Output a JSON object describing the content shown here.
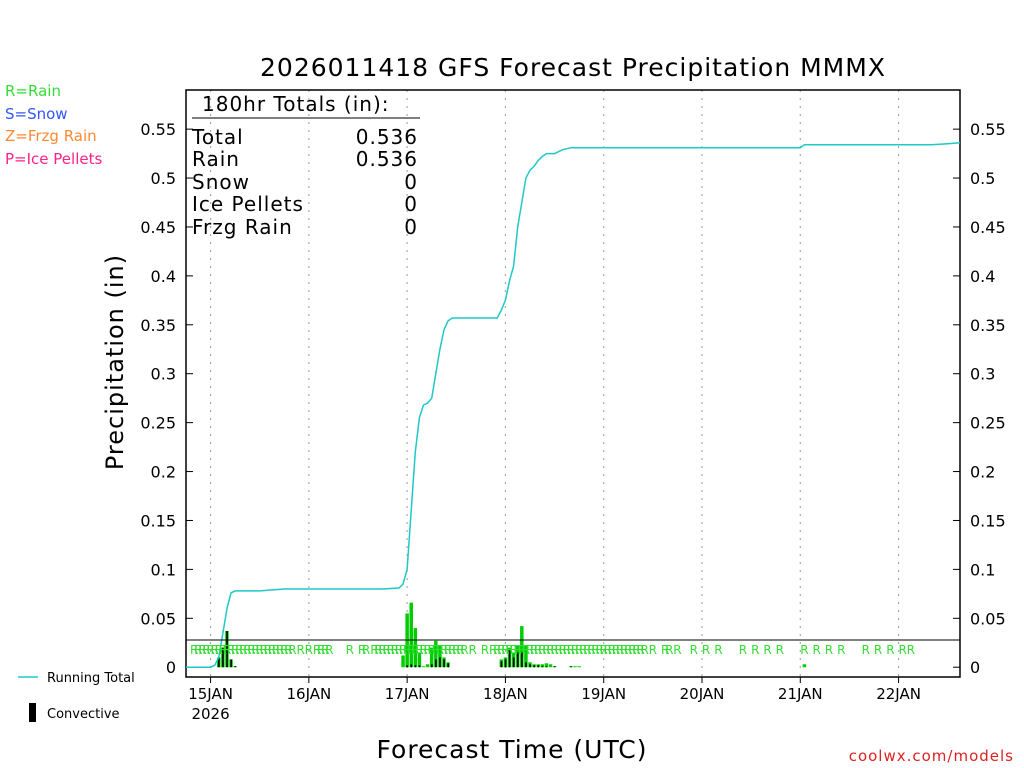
{
  "chart_data": {
    "type": "bar+line",
    "title": "2026011418 GFS Forecast Precipitation MMMX",
    "xlabel": "Forecast Time (UTC)",
    "ylabel": "Precipitation (in)",
    "ylim": [
      -0.01,
      0.59
    ],
    "y_ticks": [
      0,
      0.05,
      0.1,
      0.15,
      0.2,
      0.25,
      0.3,
      0.35,
      0.4,
      0.45,
      0.5,
      0.55
    ],
    "y_tick_labels": [
      "0",
      "0.05",
      "0.1",
      "0.15",
      "0.2",
      "0.25",
      "0.3",
      "0.35",
      "0.4",
      "0.45",
      "0.5",
      "0.55"
    ],
    "x_range_hours": [
      -6,
      183
    ],
    "x_ticks": [
      {
        "hour": 0,
        "label": "15JAN",
        "sublabel": "2026"
      },
      {
        "hour": 24,
        "label": "16JAN"
      },
      {
        "hour": 48,
        "label": "17JAN"
      },
      {
        "hour": 72,
        "label": "18JAN"
      },
      {
        "hour": 96,
        "label": "19JAN"
      },
      {
        "hour": 120,
        "label": "20JAN"
      },
      {
        "hour": 144,
        "label": "21JAN"
      },
      {
        "hour": 168,
        "label": "22JAN"
      }
    ],
    "legend_types": [
      {
        "text": "R=Rain",
        "color": "#33dd33"
      },
      {
        "text": "S=Snow",
        "color": "#3355ff"
      },
      {
        "text": "Z=Frzg Rain",
        "color": "#ff8833"
      },
      {
        "text": "P=Ice Pellets",
        "color": "#ff2288"
      }
    ],
    "legend_series": [
      {
        "text": "Running Total",
        "color": "#20c8c8"
      },
      {
        "text": "Convective",
        "color": "#000000"
      }
    ],
    "totals_box": {
      "heading": "180hr Totals (in):",
      "rows": [
        {
          "label": "Total",
          "value": "0.536"
        },
        {
          "label": "Rain",
          "value": "0.536"
        },
        {
          "label": "Snow",
          "value": "0"
        },
        {
          "label": "Ice Pellets",
          "value": "0"
        },
        {
          "label": "Frzg Rain",
          "value": "0"
        }
      ]
    },
    "running_total": [
      [
        -6,
        0
      ],
      [
        0,
        0
      ],
      [
        1,
        0.002
      ],
      [
        2,
        0.01
      ],
      [
        3,
        0.035
      ],
      [
        4,
        0.06
      ],
      [
        5,
        0.076
      ],
      [
        6,
        0.078
      ],
      [
        8,
        0.078
      ],
      [
        12,
        0.078
      ],
      [
        18,
        0.08
      ],
      [
        24,
        0.08
      ],
      [
        30,
        0.08
      ],
      [
        36,
        0.08
      ],
      [
        42,
        0.08
      ],
      [
        46,
        0.081
      ],
      [
        47,
        0.085
      ],
      [
        48,
        0.1
      ],
      [
        49,
        0.16
      ],
      [
        50,
        0.22
      ],
      [
        51,
        0.255
      ],
      [
        52,
        0.268
      ],
      [
        53,
        0.27
      ],
      [
        54,
        0.275
      ],
      [
        55,
        0.3
      ],
      [
        56,
        0.325
      ],
      [
        57,
        0.345
      ],
      [
        58,
        0.354
      ],
      [
        59,
        0.357
      ],
      [
        60,
        0.357
      ],
      [
        66,
        0.357
      ],
      [
        70,
        0.357
      ],
      [
        71,
        0.365
      ],
      [
        72,
        0.375
      ],
      [
        73,
        0.395
      ],
      [
        74,
        0.41
      ],
      [
        75,
        0.45
      ],
      [
        76,
        0.475
      ],
      [
        77,
        0.5
      ],
      [
        78,
        0.508
      ],
      [
        79,
        0.512
      ],
      [
        80,
        0.518
      ],
      [
        81,
        0.522
      ],
      [
        82,
        0.525
      ],
      [
        84,
        0.525
      ],
      [
        85,
        0.527
      ],
      [
        86,
        0.529
      ],
      [
        88,
        0.531
      ],
      [
        96,
        0.531
      ],
      [
        120,
        0.531
      ],
      [
        144,
        0.531
      ],
      [
        145,
        0.534
      ],
      [
        150,
        0.534
      ],
      [
        160,
        0.534
      ],
      [
        170,
        0.534
      ],
      [
        176,
        0.534
      ],
      [
        180,
        0.535
      ],
      [
        183,
        0.536
      ]
    ],
    "bars": [
      {
        "hour": 2,
        "total": 0.01,
        "convective": 0.01
      },
      {
        "hour": 3,
        "total": 0.02,
        "convective": 0.02
      },
      {
        "hour": 4,
        "total": 0.037,
        "convective": 0.037
      },
      {
        "hour": 5,
        "total": 0.008,
        "convective": 0.008
      },
      {
        "hour": 6,
        "total": 0.001,
        "convective": 0.001
      },
      {
        "hour": 47,
        "total": 0.012,
        "convective": 0
      },
      {
        "hour": 48,
        "total": 0.055,
        "convective": 0.002
      },
      {
        "hour": 49,
        "total": 0.066,
        "convective": 0.003
      },
      {
        "hour": 50,
        "total": 0.04,
        "convective": 0.002
      },
      {
        "hour": 51,
        "total": 0.015,
        "convective": 0.002
      },
      {
        "hour": 52,
        "total": 0.001,
        "convective": 0
      },
      {
        "hour": 53,
        "total": 0.003,
        "convective": 0
      },
      {
        "hour": 54,
        "total": 0.02,
        "convective": 0.003
      },
      {
        "hour": 55,
        "total": 0.027,
        "convective": 0.008
      },
      {
        "hour": 56,
        "total": 0.022,
        "convective": 0.01
      },
      {
        "hour": 57,
        "total": 0.01,
        "convective": 0.008
      },
      {
        "hour": 58,
        "total": 0.005,
        "convective": 0.004
      },
      {
        "hour": 71,
        "total": 0.008,
        "convective": 0.006
      },
      {
        "hour": 72,
        "total": 0.01,
        "convective": 0.008
      },
      {
        "hour": 73,
        "total": 0.02,
        "convective": 0.018
      },
      {
        "hour": 74,
        "total": 0.015,
        "convective": 0.01
      },
      {
        "hour": 75,
        "total": 0.022,
        "convective": 0.015
      },
      {
        "hour": 76,
        "total": 0.042,
        "convective": 0.015
      },
      {
        "hour": 77,
        "total": 0.022,
        "convective": 0.005
      },
      {
        "hour": 78,
        "total": 0.005,
        "convective": 0.003
      },
      {
        "hour": 79,
        "total": 0.003,
        "convective": 0.002
      },
      {
        "hour": 80,
        "total": 0.003,
        "convective": 0.002
      },
      {
        "hour": 81,
        "total": 0.003,
        "convective": 0.001
      },
      {
        "hour": 82,
        "total": 0.004,
        "convective": 0.001
      },
      {
        "hour": 83,
        "total": 0.003,
        "convective": 0
      },
      {
        "hour": 84,
        "total": 0.001,
        "convective": 0.001
      },
      {
        "hour": 88,
        "total": 0.001,
        "convective": 0.001
      },
      {
        "hour": 89,
        "total": 0.001,
        "convective": 0
      },
      {
        "hour": 90,
        "total": 0.001,
        "convective": 0
      },
      {
        "hour": 145,
        "total": 0.003,
        "convective": 0
      }
    ],
    "precip_type_markers": {
      "letter": "R",
      "hours": [
        -4,
        -3,
        -2,
        -1,
        0,
        1,
        2,
        3,
        4,
        5,
        6,
        7,
        8,
        9,
        10,
        11,
        12,
        13,
        14,
        15,
        16,
        17,
        18,
        19,
        20,
        22,
        24,
        26,
        27,
        28,
        29,
        34,
        37,
        38,
        40,
        41,
        42,
        43,
        44,
        45,
        46,
        47,
        48,
        49,
        50,
        51,
        52,
        53,
        54,
        55,
        56,
        57,
        58,
        59,
        60,
        61,
        62,
        64,
        67,
        69,
        70,
        71,
        72,
        73,
        74,
        75,
        76,
        77,
        78,
        79,
        80,
        81,
        82,
        83,
        84,
        85,
        86,
        87,
        88,
        89,
        90,
        91,
        92,
        93,
        94,
        95,
        96,
        97,
        98,
        99,
        100,
        101,
        102,
        103,
        104,
        105,
        106,
        108,
        111,
        112,
        114,
        118,
        121,
        124,
        130,
        133,
        136,
        139,
        145,
        148,
        151,
        154,
        160,
        163,
        166,
        169,
        171
      ]
    }
  },
  "footer": {
    "credit": "coolwx.com/models"
  }
}
